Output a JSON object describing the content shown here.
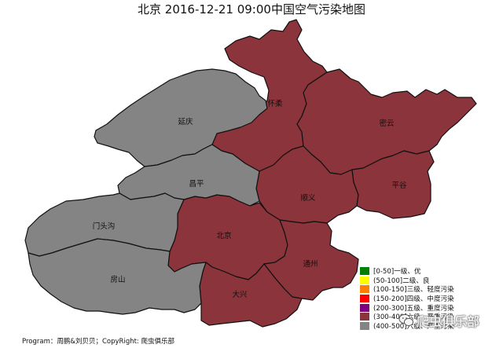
{
  "title": "北京 2016-12-21 09:00中国空气污染地图",
  "colors": {
    "severe": "#8b343b",
    "beyond": "#848484",
    "outline": "#111111"
  },
  "regions": {
    "huairou": {
      "label": "怀柔",
      "level": "(300-400]六级、严重污染"
    },
    "miyun": {
      "label": "密云",
      "level": "(300-400]六级、严重污染"
    },
    "yanqing": {
      "label": "延庆",
      "level": "(400-500]六级、严重污染"
    },
    "changping": {
      "label": "昌平",
      "level": "(400-500]六级、严重污染"
    },
    "shunyi": {
      "label": "顺义",
      "level": "(300-400]六级、严重污染"
    },
    "pinggu": {
      "label": "平谷",
      "level": "(300-400]六级、严重污染"
    },
    "mentougou": {
      "label": "门头沟",
      "level": "(400-500]六级、严重污染"
    },
    "beijing": {
      "label": "北京",
      "level": "(300-400]六级、严重污染"
    },
    "fangshan": {
      "label": "房山",
      "level": "(400-500]六级、严重污染"
    },
    "tongzhou": {
      "label": "通州",
      "level": "(300-400]六级、严重污染"
    },
    "daxing": {
      "label": "大兴",
      "level": "(300-400]六级、严重污染"
    }
  },
  "legend": [
    {
      "label": "[0-50]一级、优",
      "color": "#008000"
    },
    {
      "label": "(50-100]二级、良",
      "color": "#ffff00"
    },
    {
      "label": "(100-150]三级、轻度污染",
      "color": "#ff8000"
    },
    {
      "label": "(150-200]四级、中度污染",
      "color": "#ff0000"
    },
    {
      "label": "(200-300]五级、重度污染",
      "color": "#7f007f"
    },
    {
      "label": "(300-400]六级、严重污染",
      "color": "#8b343b"
    },
    {
      "label": "(400-500]六级、严重污染",
      "color": "#848484"
    }
  ],
  "footer": "Program：周鹏&刘贝贝；CopyRight: 爬虫俱乐部",
  "watermark": {
    "text": "爬虫俱乐部",
    "icon": "wechat-icon"
  }
}
